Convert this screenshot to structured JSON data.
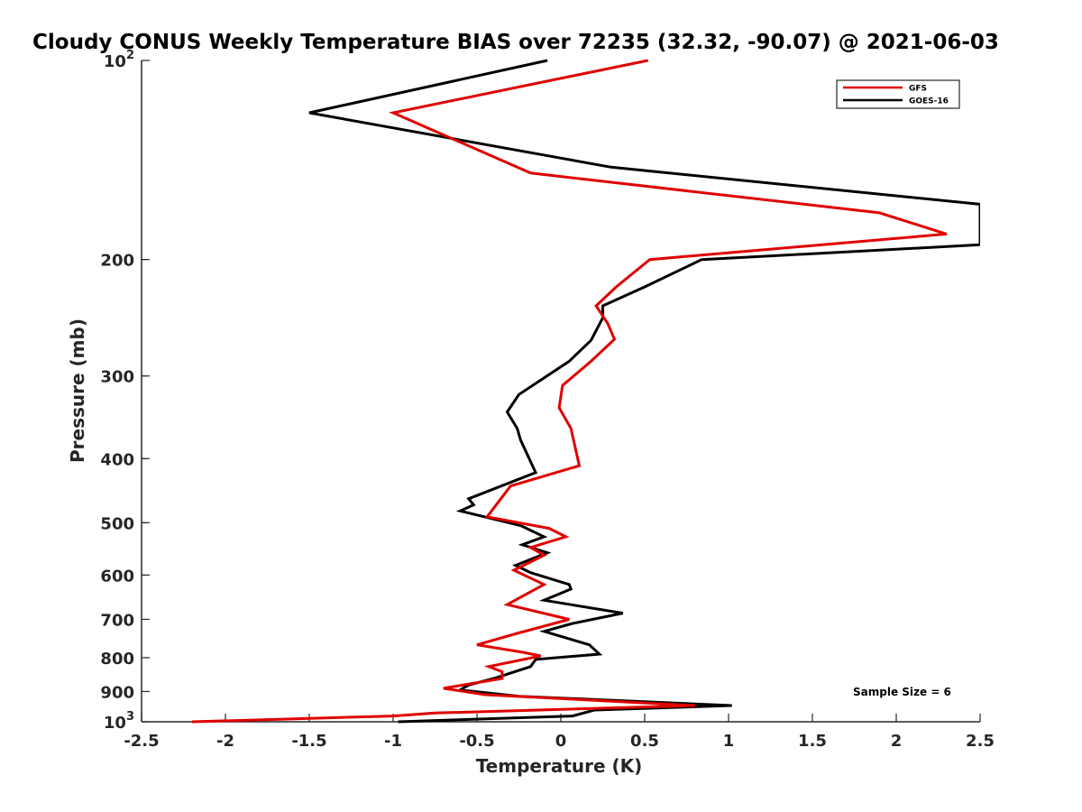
{
  "chart_data": {
    "type": "line",
    "title": "Cloudy CONUS Weekly Temperature BIAS over 72235 (32.32, -90.07) @ 2021-06-03",
    "xlabel": "Temperature (K)",
    "ylabel": "Pressure (mb)",
    "xlim": [
      -2.5,
      2.5
    ],
    "ylim": [
      100,
      1000
    ],
    "y_scale": "log",
    "y_reversed": true,
    "x_ticks": [
      "-2.5",
      "-2",
      "-1.5",
      "-1",
      "-0.5",
      "0",
      "0.5",
      "1",
      "1.5",
      "2",
      "2.5"
    ],
    "y_ticks": [
      {
        "value": 100,
        "label": "10",
        "sup": "2"
      },
      {
        "value": 200,
        "label": "200",
        "sup": ""
      },
      {
        "value": 300,
        "label": "300",
        "sup": ""
      },
      {
        "value": 400,
        "label": "400",
        "sup": ""
      },
      {
        "value": 500,
        "label": "500",
        "sup": ""
      },
      {
        "value": 600,
        "label": "600",
        "sup": ""
      },
      {
        "value": 700,
        "label": "700",
        "sup": ""
      },
      {
        "value": 800,
        "label": "800",
        "sup": ""
      },
      {
        "value": 900,
        "label": "900",
        "sup": ""
      },
      {
        "value": 1000,
        "label": "10",
        "sup": "3"
      }
    ],
    "grid": false,
    "legend_position": "top-right",
    "annotation": "Sample Size = 6",
    "series": [
      {
        "name": "GFS",
        "color": "#e00000",
        "points": [
          [
            0.52,
            100
          ],
          [
            -1.0,
            120
          ],
          [
            -0.18,
            148
          ],
          [
            1.9,
            170
          ],
          [
            2.3,
            183
          ],
          [
            0.53,
            200
          ],
          [
            0.33,
            220
          ],
          [
            0.21,
            235
          ],
          [
            0.28,
            250
          ],
          [
            0.32,
            264
          ],
          [
            0.18,
            285
          ],
          [
            0.01,
            310
          ],
          [
            -0.01,
            335
          ],
          [
            0.06,
            360
          ],
          [
            0.11,
            410
          ],
          [
            -0.3,
            440
          ],
          [
            -0.44,
            490
          ],
          [
            -0.07,
            510
          ],
          [
            0.03,
            525
          ],
          [
            -0.18,
            545
          ],
          [
            -0.1,
            560
          ],
          [
            -0.28,
            590
          ],
          [
            -0.1,
            620
          ],
          [
            -0.32,
            665
          ],
          [
            0.05,
            700
          ],
          [
            -0.26,
            735
          ],
          [
            -0.5,
            765
          ],
          [
            -0.23,
            785
          ],
          [
            -0.12,
            795
          ],
          [
            -0.43,
            825
          ],
          [
            -0.35,
            840
          ],
          [
            -0.35,
            860
          ],
          [
            -0.7,
            890
          ],
          [
            -0.45,
            910
          ],
          [
            0.8,
            945
          ],
          [
            -0.75,
            970
          ],
          [
            -1.0,
            980
          ],
          [
            -2.2,
            1000
          ]
        ]
      },
      {
        "name": "GOES-16",
        "color": "#000000",
        "points": [
          [
            -0.08,
            100
          ],
          [
            -1.5,
            120
          ],
          [
            0.3,
            145
          ],
          [
            2.5,
            165
          ],
          [
            2.5,
            190
          ],
          [
            0.84,
            200
          ],
          [
            0.5,
            220
          ],
          [
            0.25,
            235
          ],
          [
            0.25,
            245
          ],
          [
            0.18,
            265
          ],
          [
            0.05,
            285
          ],
          [
            -0.25,
            320
          ],
          [
            -0.32,
            340
          ],
          [
            -0.26,
            360
          ],
          [
            -0.24,
            375
          ],
          [
            -0.15,
            420
          ],
          [
            -0.55,
            460
          ],
          [
            -0.52,
            470
          ],
          [
            -0.6,
            480
          ],
          [
            -0.24,
            505
          ],
          [
            -0.1,
            525
          ],
          [
            -0.23,
            540
          ],
          [
            -0.08,
            555
          ],
          [
            -0.27,
            580
          ],
          [
            -0.18,
            595
          ],
          [
            0.05,
            620
          ],
          [
            0.06,
            630
          ],
          [
            -0.1,
            655
          ],
          [
            0.37,
            685
          ],
          [
            0.07,
            710
          ],
          [
            -0.1,
            730
          ],
          [
            0.17,
            765
          ],
          [
            0.23,
            790
          ],
          [
            -0.15,
            805
          ],
          [
            -0.18,
            825
          ],
          [
            -0.4,
            860
          ],
          [
            -0.55,
            880
          ],
          [
            -0.6,
            895
          ],
          [
            -0.25,
            915
          ],
          [
            1.02,
            945
          ],
          [
            0.2,
            960
          ],
          [
            0.07,
            980
          ],
          [
            -0.97,
            1000
          ]
        ]
      }
    ]
  }
}
